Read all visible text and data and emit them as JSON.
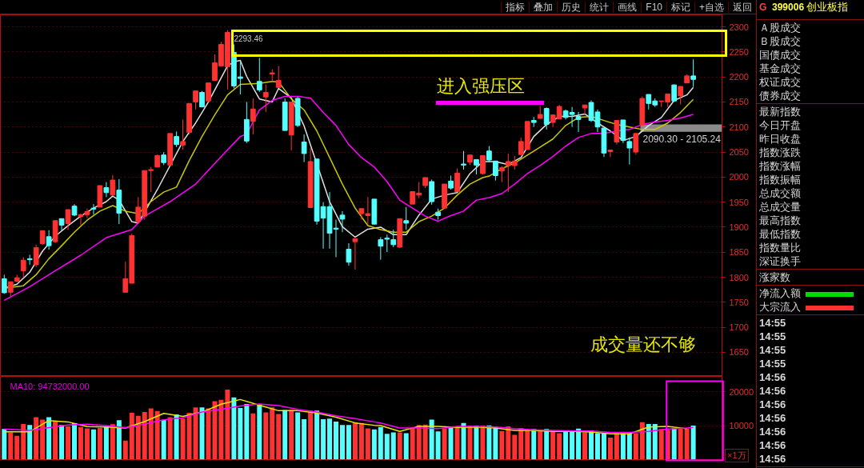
{
  "chart_data": [
    {
      "type": "candlestick",
      "categories": [
        null,
        null,
        null,
        null,
        null,
        null,
        null,
        null,
        null,
        null,
        null,
        null,
        null,
        null,
        null,
        null,
        null,
        null,
        null,
        null,
        null,
        null,
        null,
        null,
        null,
        null,
        null,
        null,
        null,
        null,
        null,
        null,
        null,
        null,
        null,
        null,
        null,
        null,
        null,
        null,
        null,
        null,
        null,
        null,
        null,
        null,
        null,
        null,
        null,
        null,
        null,
        null,
        null,
        null,
        null,
        null,
        null,
        null,
        null,
        null,
        null,
        null,
        null,
        null,
        null,
        null,
        null,
        null,
        null,
        null,
        null,
        null,
        null,
        null,
        null,
        null,
        null,
        null,
        null,
        null,
        null,
        null,
        null,
        null,
        null,
        null,
        null,
        null,
        null,
        null,
        null,
        null,
        null,
        null,
        null,
        null,
        null,
        null,
        null,
        null,
        null,
        null,
        null,
        null,
        null,
        null,
        null,
        null,
        null
      ],
      "ohlc": [
        [
          1797,
          1805,
          1767,
          1769
        ],
        [
          1770,
          1791,
          1762,
          1791
        ],
        [
          1792,
          1805,
          1790,
          1799
        ],
        [
          1813,
          1840,
          1800,
          1834
        ],
        [
          1837,
          1845,
          1825,
          1835
        ],
        [
          1825,
          1865,
          1820,
          1859
        ],
        [
          1867,
          1893,
          1865,
          1893
        ],
        [
          1881,
          1894,
          1855,
          1863
        ],
        [
          1871,
          1913,
          1868,
          1913
        ],
        [
          1917,
          1917,
          1893,
          1904
        ],
        [
          1907,
          1935,
          1895,
          1935
        ],
        [
          1942,
          1946,
          1922,
          1924
        ],
        [
          1921,
          1927,
          1904,
          1925
        ],
        [
          1925,
          1937,
          1918,
          1931
        ],
        [
          1938,
          1946,
          1925,
          1936
        ],
        [
          1940,
          1983,
          1940,
          1983
        ],
        [
          1979,
          1990,
          1960,
          1969
        ],
        [
          1964,
          2004,
          1964,
          1994
        ],
        [
          1974,
          1996,
          1906,
          1928
        ],
        [
          1770,
          1831,
          1770,
          1797
        ],
        [
          1788,
          1887,
          1788,
          1883
        ],
        [
          1911,
          1960,
          1910,
          1940
        ],
        [
          1922,
          2013,
          1915,
          2013
        ],
        [
          2013,
          2020,
          1970,
          2015
        ],
        [
          2020,
          2045,
          2020,
          2043
        ],
        [
          2044,
          2050,
          2024,
          2029
        ],
        [
          2024,
          2087,
          2024,
          2087
        ],
        [
          2081,
          2091,
          2060,
          2065
        ],
        [
          2064,
          2115,
          2055,
          2071
        ],
        [
          2089,
          2147,
          2085,
          2147
        ],
        [
          2150,
          2172,
          2135,
          2172
        ],
        [
          2169,
          2172,
          2140,
          2140
        ],
        [
          2152,
          2188,
          2150,
          2188
        ],
        [
          2193,
          2245,
          2193,
          2228
        ],
        [
          2222,
          2270,
          2222,
          2265
        ],
        [
          2220,
          2293.46,
          2175,
          2289
        ],
        [
          2249,
          2265,
          2177,
          2182
        ],
        [
          2200,
          2230,
          2165,
          2197
        ],
        [
          2115,
          2150,
          2068,
          2072
        ],
        [
          2111,
          2157,
          2085,
          2136
        ],
        [
          2191,
          2238,
          2170,
          2174
        ],
        [
          2160,
          2185,
          2130,
          2169
        ],
        [
          2206,
          2215,
          2190,
          2208
        ],
        [
          2179,
          2222,
          2178,
          2193
        ],
        [
          2150,
          2157,
          2093,
          2093
        ],
        [
          2084,
          2150,
          2053,
          2150
        ],
        [
          2157,
          2160,
          2100,
          2103
        ],
        [
          2070,
          2085,
          2030,
          2047
        ],
        [
          1939,
          2058,
          1939,
          2031
        ],
        [
          2036,
          2036,
          1905,
          1912
        ],
        [
          1941,
          1950,
          1857,
          1918
        ],
        [
          1941,
          1970,
          1857,
          1888
        ],
        [
          1898,
          1915,
          1840,
          1896
        ],
        [
          1924,
          1932,
          1890,
          1916
        ],
        [
          1856,
          1868,
          1823,
          1830
        ],
        [
          1871,
          1877,
          1815,
          1877
        ],
        [
          1927,
          1937,
          1915,
          1937
        ],
        [
          1923,
          1960,
          1905,
          1927
        ],
        [
          1956,
          1956,
          1906,
          1906
        ],
        [
          1875,
          1880,
          1835,
          1862
        ],
        [
          1878,
          1885,
          1850,
          1876
        ],
        [
          1875,
          1895,
          1860,
          1865
        ],
        [
          1860,
          1917,
          1858,
          1917
        ],
        [
          1913,
          1940,
          1895,
          1908
        ],
        [
          1946,
          1971,
          1946,
          1971
        ],
        [
          1964,
          1990,
          1958,
          1968
        ],
        [
          1983,
          1999,
          1978,
          1999
        ],
        [
          1991,
          1995,
          1945,
          1951
        ],
        [
          1930,
          1937,
          1915,
          1923
        ],
        [
          1938,
          1986,
          1937,
          1986
        ],
        [
          1992,
          2003,
          1975,
          1978
        ],
        [
          1971,
          2017,
          1971,
          2008
        ],
        [
          2026,
          2052,
          2015,
          2024
        ],
        [
          2030,
          2044,
          2024,
          2044
        ],
        [
          2035,
          2035,
          2005,
          2024
        ],
        [
          2007,
          2043,
          2005,
          2043
        ],
        [
          2052,
          2062,
          2030,
          2034
        ],
        [
          2032,
          2032,
          1993,
          2003
        ],
        [
          2012,
          2022,
          1990,
          2019
        ],
        [
          2023,
          2047,
          1970,
          2031
        ],
        [
          2023,
          2042,
          2015,
          2032
        ],
        [
          2045,
          2079,
          2045,
          2071
        ],
        [
          2055,
          2111,
          2055,
          2111
        ],
        [
          2113,
          2120,
          2100,
          2109
        ],
        [
          2117,
          2142,
          2117,
          2125
        ],
        [
          2137,
          2139,
          2095,
          2105
        ],
        [
          2109,
          2124,
          2100,
          2124
        ],
        [
          2116,
          2144,
          2116,
          2141
        ],
        [
          2132,
          2135,
          2115,
          2119
        ],
        [
          2129,
          2140,
          2100,
          2125
        ],
        [
          2121,
          2130,
          2090,
          2115
        ],
        [
          2138,
          2144,
          2125,
          2144
        ],
        [
          2149,
          2153,
          2110,
          2113
        ],
        [
          2130,
          2135,
          2090,
          2100
        ],
        [
          2098,
          2098,
          2040,
          2048
        ],
        [
          2051,
          2054,
          2040,
          2054
        ],
        [
          2070,
          2113,
          2065,
          2113
        ],
        [
          2114,
          2114,
          2068,
          2073
        ],
        [
          2071,
          2079,
          2025,
          2058
        ],
        [
          2050,
          2087,
          2045,
          2087
        ],
        [
          2104,
          2161,
          2104,
          2157
        ],
        [
          2165,
          2165,
          2135,
          2147
        ],
        [
          2152,
          2157,
          2140,
          2144
        ],
        [
          2151,
          2152,
          2140,
          2152
        ],
        [
          2150,
          2166,
          2140,
          2166
        ],
        [
          2184,
          2185,
          2150,
          2152
        ],
        [
          2162,
          2181,
          2145,
          2181
        ],
        [
          2188,
          2205,
          2188,
          2202
        ],
        [
          2202,
          2235,
          2180,
          2195
        ]
      ],
      "colors": [
        "#54ffff",
        "#ff3232",
        "#ff3232",
        "#ff3232",
        "#54ffff",
        "#ff3232",
        "#ff3232",
        "#54ffff",
        "#ff3232",
        "#54ffff",
        "#ff3232",
        "#54ffff",
        "#ff3232",
        "#ff3232",
        "#54ffff",
        "#ff3232",
        "#54ffff",
        "#ff3232",
        "#54ffff",
        "#ff3232",
        "#ff3232",
        "#ff3232",
        "#ff3232",
        "#ff3232",
        "#ff3232",
        "#54ffff",
        "#ff3232",
        "#54ffff",
        "#ff3232",
        "#ff3232",
        "#ff3232",
        "#54ffff",
        "#ff3232",
        "#ff3232",
        "#ff3232",
        "#ff3232",
        "#54ffff",
        "#54ffff",
        "#54ffff",
        "#ff3232",
        "#54ffff",
        "#ff3232",
        "#ff3232",
        "#ff3232",
        "#54ffff",
        "#ff3232",
        "#54ffff",
        "#54ffff",
        "#ff3232",
        "#54ffff",
        "#54ffff",
        "#54ffff",
        "#54ffff",
        "#54ffff",
        "#54ffff",
        "#ff3232",
        "#ff3232",
        "#ff3232",
        "#54ffff",
        "#54ffff",
        "#54ffff",
        "#54ffff",
        "#ff3232",
        "#54ffff",
        "#ff3232",
        "#ff3232",
        "#ff3232",
        "#54ffff",
        "#54ffff",
        "#ff3232",
        "#54ffff",
        "#ff3232",
        "#54ffff",
        "#ff3232",
        "#54ffff",
        "#ff3232",
        "#54ffff",
        "#54ffff",
        "#ff3232",
        "#ff3232",
        "#ff3232",
        "#ff3232",
        "#ff3232",
        "#54ffff",
        "#ff3232",
        "#54ffff",
        "#ff3232",
        "#ff3232",
        "#54ffff",
        "#54ffff",
        "#54ffff",
        "#ff3232",
        "#54ffff",
        "#54ffff",
        "#54ffff",
        "#ff3232",
        "#ff3232",
        "#54ffff",
        "#54ffff",
        "#ff3232",
        "#ff3232",
        "#54ffff",
        "#54ffff",
        "#ff3232",
        "#ff3232",
        "#54ffff",
        "#ff3232",
        "#ff3232",
        "#54ffff"
      ],
      "series": [
        {
          "type": "line",
          "color": "#e0e0e0",
          "values": [
            1778,
            null,
            1786,
            null,
            1810,
            null,
            1852,
            null,
            1882,
            null,
            1903,
            null,
            1922,
            null,
            1938,
            null,
            1951,
            1962,
            1954,
            null,
            1911,
            1908,
            null,
            null,
            1975,
            null,
            null,
            null,
            2071,
            null,
            2108,
            null,
            2150,
            null,
            2198,
            2222,
            2230,
            2233,
            2201,
            null,
            2156,
            null,
            2150,
            2177,
            null,
            2158,
            null,
            2102,
            null,
            null,
            null,
            1951,
            null,
            1901,
            null,
            1880,
            null,
            1896,
            null,
            1900,
            null,
            1885,
            null,
            1885,
            null,
            1924,
            null,
            1956,
            null,
            1964,
            null,
            1969,
            null,
            2007,
            null,
            2031,
            null,
            2031,
            null,
            2025,
            null,
            2039,
            null,
            2081,
            null,
            2105,
            null,
            2121,
            null,
            2121,
            null,
            2126,
            null,
            2108,
            null,
            2092,
            null,
            2073,
            null,
            2081,
            null,
            2103,
            null,
            2119,
            null,
            2153,
            null,
            2164,
            2179
          ]
        },
        {
          "type": "line",
          "color": "#c8c800",
          "values": [
            1778,
            null,
            null,
            1783,
            null,
            1805,
            null,
            1837,
            null,
            1863,
            null,
            1890,
            null,
            1914,
            null,
            1932,
            null,
            1943,
            null,
            1932,
            null,
            1927,
            null,
            1951,
            null,
            1970,
            null,
            1980,
            null,
            2033,
            null,
            2081,
            null,
            2124,
            null,
            2164,
            null,
            2185,
            null,
            null,
            2187,
            null,
            2191,
            2190,
            null,
            2156,
            null,
            2134,
            null,
            2092,
            null,
            2039,
            null,
            1986,
            null,
            1938,
            null,
            1903,
            null,
            1895,
            null,
            1890,
            null,
            1890,
            null,
            1911,
            null,
            1922,
            null,
            1938,
            null,
            1964,
            null,
            1986,
            null,
            1999,
            2002,
            null,
            2017,
            null,
            2028,
            null,
            2044,
            null,
            2060,
            null,
            2076,
            null,
            2103,
            null,
            2119,
            null,
            2121,
            null,
            2113,
            null,
            2105,
            null,
            2100,
            null,
            2095,
            null,
            2095,
            null,
            2108,
            null,
            2129,
            null,
            2155
          ]
        },
        {
          "type": "line",
          "color": "#ff00ff",
          "values": [
            1754,
            null,
            null,
            null,
            1781,
            null,
            null,
            null,
            1813,
            null,
            null,
            null,
            1844,
            null,
            null,
            null,
            1879,
            null,
            1887,
            null,
            1895,
            null,
            1922,
            null,
            null,
            null,
            1951,
            null,
            null,
            null,
            1986,
            null,
            null,
            null,
            2041,
            null,
            null,
            2081,
            2086,
            null,
            2134,
            null,
            2153,
            null,
            2161,
            null,
            2161,
            null,
            2158,
            null,
            2129,
            null,
            2103,
            null,
            2065,
            null,
            2039,
            null,
            2020,
            null,
            1991,
            null,
            1954,
            null,
            1938,
            null,
            1922,
            null,
            1912,
            null,
            1923,
            null,
            1932,
            null,
            1954,
            null,
            1959,
            null,
            1967,
            null,
            1986,
            null,
            2007,
            null,
            2023,
            null,
            2041,
            null,
            2062,
            null,
            2079,
            null,
            2087,
            null,
            2087,
            null,
            2092,
            null,
            2095,
            null,
            2105,
            null,
            2110,
            null,
            2113,
            null,
            2118,
            null,
            2125
          ]
        }
      ],
      "ylim": [
        1602,
        2324
      ],
      "yticks": [
        1650,
        1700,
        1750,
        1800,
        1850,
        1900,
        1950,
        2000,
        2050,
        2100,
        2150,
        2200,
        2250,
        2300
      ],
      "grid": "y",
      "tick_labels": "y",
      "bands": [
        {
          "axis": "y",
          "from": 2090.3,
          "to": 2105.24,
          "label": "2090.30 - 2105.24",
          "color": "#9a9a9a"
        }
      ],
      "annotations": [
        "2293.46",
        "进入强压区",
        "成交量还不够"
      ]
    },
    {
      "type": "bar",
      "categories": [
        null,
        null,
        null,
        null,
        null,
        null,
        null,
        null,
        null,
        null,
        null,
        null,
        null,
        null,
        null,
        null,
        null,
        null,
        null,
        null,
        null,
        null,
        null,
        null,
        null,
        null,
        null,
        null,
        null,
        null,
        null,
        null,
        null,
        null,
        null,
        null,
        null,
        null,
        null,
        null,
        null,
        null,
        null,
        null,
        null,
        null,
        null,
        null,
        null,
        null,
        null,
        null,
        null,
        null,
        null,
        null,
        null,
        null,
        null,
        null,
        null,
        null,
        null,
        null,
        null,
        null,
        null,
        null,
        null,
        null,
        null,
        null,
        null,
        null,
        null,
        null,
        null,
        null,
        null,
        null,
        null,
        null,
        null,
        null,
        null,
        null,
        null,
        null,
        null,
        null,
        null,
        null,
        null,
        null,
        null,
        null,
        null,
        null,
        null,
        null,
        null,
        null,
        null,
        null,
        null,
        null,
        null,
        null,
        null
      ],
      "values": [
        9000,
        8000,
        7000,
        10500,
        10200,
        12500,
        11800,
        12500,
        11200,
        10200,
        9800,
        10700,
        9600,
        9200,
        8900,
        9300,
        9800,
        10400,
        11600,
        5600,
        13800,
        12900,
        14000,
        15100,
        14300,
        11700,
        12500,
        13300,
        12100,
        13800,
        15400,
        15400,
        15100,
        17200,
        17600,
        20600,
        18300,
        15200,
        16400,
        13600,
        16400,
        13900,
        15400,
        13400,
        14600,
        14600,
        13900,
        11900,
        14400,
        14400,
        11900,
        12100,
        11200,
        10200,
        10200,
        11000,
        10800,
        9200,
        8900,
        9600,
        7600,
        8000,
        8000,
        7800,
        9300,
        10200,
        10300,
        11800,
        8300,
        9200,
        9500,
        9700,
        10800,
        10000,
        10000,
        10000,
        10100,
        9600,
        8400,
        9800,
        7300,
        9300,
        8800,
        9000,
        8600,
        9000,
        8200,
        7800,
        8300,
        8100,
        9100,
        8000,
        8600,
        7800,
        7800,
        6500,
        7800,
        7800,
        7800,
        7800,
        11000,
        10500,
        10500,
        9000,
        8800,
        9300,
        9200,
        9100,
        10000
      ],
      "colors": [
        "#54ffff",
        "#ff3232",
        "#ff3232",
        "#ff3232",
        "#54ffff",
        "#ff3232",
        "#ff3232",
        "#54ffff",
        "#ff3232",
        "#54ffff",
        "#ff3232",
        "#54ffff",
        "#ff3232",
        "#ff3232",
        "#54ffff",
        "#ff3232",
        "#54ffff",
        "#ff3232",
        "#54ffff",
        "#ff3232",
        "#ff3232",
        "#ff3232",
        "#ff3232",
        "#ff3232",
        "#ff3232",
        "#54ffff",
        "#ff3232",
        "#54ffff",
        "#ff3232",
        "#ff3232",
        "#ff3232",
        "#54ffff",
        "#ff3232",
        "#ff3232",
        "#ff3232",
        "#ff3232",
        "#54ffff",
        "#54ffff",
        "#54ffff",
        "#ff3232",
        "#54ffff",
        "#ff3232",
        "#ff3232",
        "#ff3232",
        "#54ffff",
        "#ff3232",
        "#54ffff",
        "#54ffff",
        "#ff3232",
        "#54ffff",
        "#54ffff",
        "#54ffff",
        "#54ffff",
        "#54ffff",
        "#54ffff",
        "#ff3232",
        "#ff3232",
        "#ff3232",
        "#54ffff",
        "#54ffff",
        "#54ffff",
        "#54ffff",
        "#ff3232",
        "#54ffff",
        "#ff3232",
        "#ff3232",
        "#ff3232",
        "#54ffff",
        "#54ffff",
        "#ff3232",
        "#54ffff",
        "#ff3232",
        "#54ffff",
        "#ff3232",
        "#54ffff",
        "#ff3232",
        "#54ffff",
        "#54ffff",
        "#ff3232",
        "#ff3232",
        "#ff3232",
        "#ff3232",
        "#ff3232",
        "#54ffff",
        "#ff3232",
        "#54ffff",
        "#ff3232",
        "#ff3232",
        "#54ffff",
        "#54ffff",
        "#54ffff",
        "#ff3232",
        "#54ffff",
        "#54ffff",
        "#54ffff",
        "#ff3232",
        "#ff3232",
        "#54ffff",
        "#54ffff",
        "#ff3232",
        "#ff3232",
        "#54ffff",
        "#54ffff",
        "#ff3232",
        "#ff3232",
        "#54ffff",
        "#ff3232",
        "#ff3232",
        "#54ffff"
      ],
      "series": [
        {
          "type": "line",
          "color": "#e8e800",
          "values": [
            8200,
            null,
            null,
            null,
            8200,
            null,
            null,
            11500,
            null,
            null,
            11100,
            null,
            null,
            9700,
            null,
            null,
            9600,
            null,
            null,
            9300,
            null,
            null,
            11200,
            null,
            null,
            13600,
            null,
            null,
            12700,
            null,
            null,
            14000,
            null,
            null,
            16300,
            null,
            null,
            17700,
            null,
            null,
            16000,
            null,
            null,
            14400,
            null,
            null,
            14400,
            null,
            null,
            13700,
            null,
            null,
            12500,
            null,
            null,
            10800,
            null,
            null,
            10100,
            10000,
            null,
            null,
            8300,
            null,
            null,
            9800,
            null,
            null,
            9800,
            null,
            null,
            9500,
            null,
            null,
            9600,
            null,
            null,
            9300,
            null,
            null,
            8600,
            null,
            null,
            8600,
            null,
            null,
            8300,
            null,
            null,
            8300,
            null,
            null,
            8100,
            null,
            null,
            7600,
            null,
            null,
            7600,
            null,
            null,
            9600,
            null,
            null,
            9800,
            null,
            null,
            9100,
            null
          ]
        },
        {
          "type": "line",
          "color": "#ff00ff",
          "values": [
            9000,
            null,
            null,
            null,
            8600,
            null,
            null,
            9400,
            null,
            null,
            10200,
            null,
            null,
            10400,
            null,
            null,
            10000,
            null,
            null,
            9400,
            null,
            null,
            10400,
            null,
            null,
            11700,
            null,
            null,
            12300,
            null,
            null,
            14000,
            null,
            null,
            14800,
            null,
            null,
            15800,
            null,
            null,
            16400,
            null,
            null,
            15900,
            null,
            null,
            14800,
            null,
            null,
            14000,
            null,
            null,
            12900,
            null,
            null,
            12100,
            null,
            null,
            11100,
            10800,
            null,
            null,
            9300,
            null,
            null,
            9300,
            null,
            null,
            9100,
            null,
            null,
            9800,
            null,
            null,
            9800,
            null,
            null,
            9600,
            null,
            null,
            9100,
            null,
            null,
            8800,
            null,
            null,
            8600,
            null,
            null,
            8500,
            null,
            null,
            8400,
            null,
            null,
            8000,
            null,
            null,
            8000,
            null,
            null,
            8300,
            null,
            null,
            9000,
            null,
            null,
            9300,
            9500
          ]
        }
      ],
      "ylim": [
        0,
        24500
      ],
      "yticks": [
        10000,
        20000
      ],
      "grid": "y",
      "tick_labels": "y",
      "annotations": [
        "MA10: 94732000.00",
        "×1万"
      ]
    },
    {
      "type": "other",
      "annotations": [
        "指标",
        "叠加",
        "历史",
        "统计",
        "画线",
        "F10",
        "标记",
        "+自选",
        "返回"
      ]
    },
    {
      "type": "other",
      "annotations": [
        "G",
        "399006",
        "创业板指",
        "Ａ股成交",
        "Ｂ股成交",
        "国债成交",
        "基金成交",
        "权证成交",
        "债券成交",
        "最新指数",
        "今日开盘",
        "昨日收盘",
        "指数涨跌",
        "指数涨幅",
        "指数振幅",
        "总成交额",
        "总成交量",
        "最高指数",
        "最低指数",
        "指数量比",
        "深证换手",
        "涨家数",
        "净流入额",
        "大宗流入",
        "14:55",
        "14:55",
        "14:55",
        "14:55",
        "14:56",
        "14:56",
        "14:56",
        "14:56",
        "14:56",
        "14:56",
        "14:56"
      ]
    }
  ]
}
